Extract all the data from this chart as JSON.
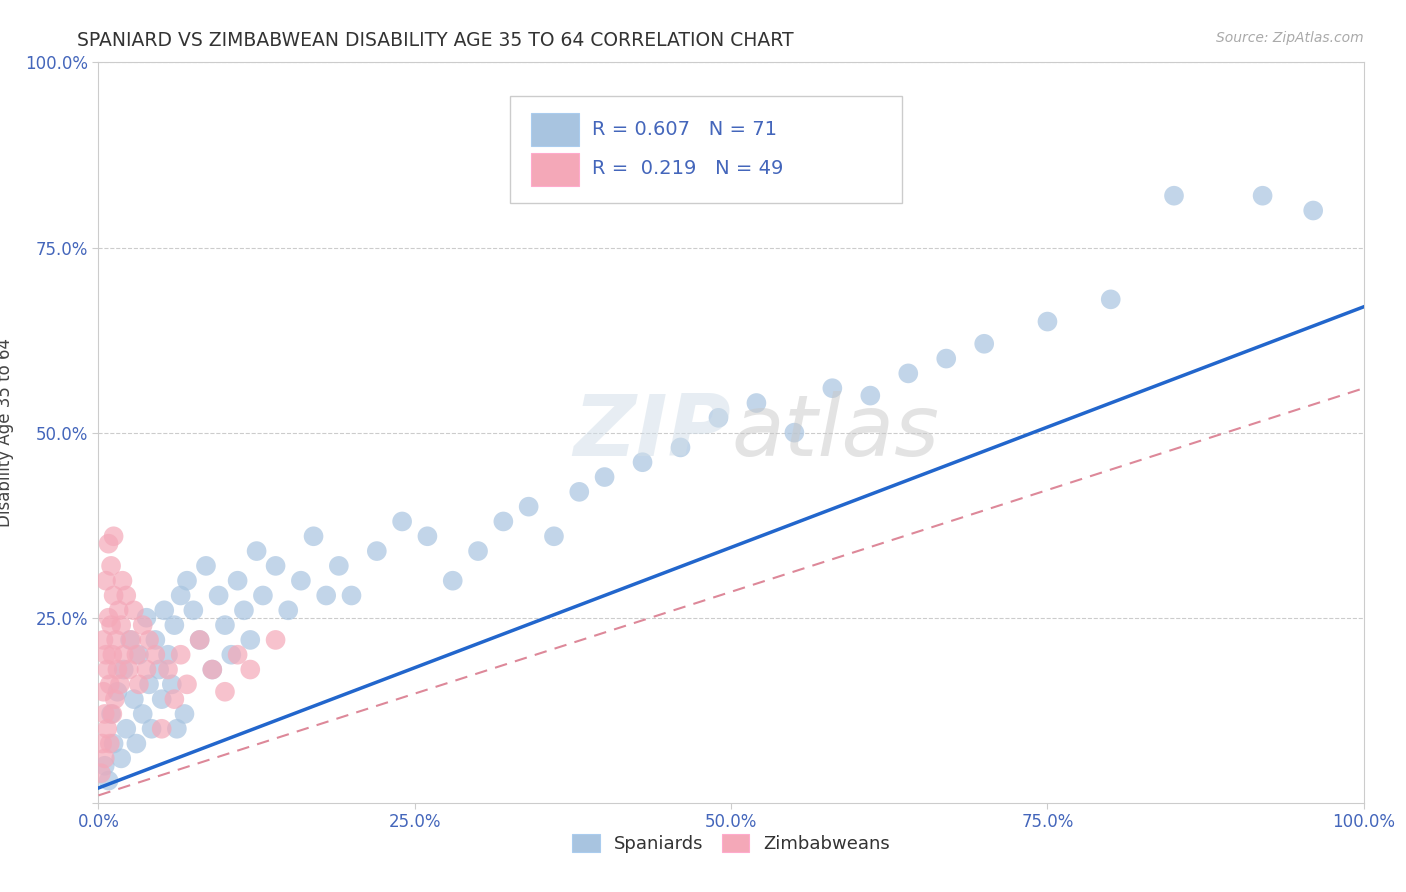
{
  "title": "SPANIARD VS ZIMBABWEAN DISABILITY AGE 35 TO 64 CORRELATION CHART",
  "source": "Source: ZipAtlas.com",
  "ylabel": "Disability Age 35 to 64",
  "xlim": [
    0,
    1
  ],
  "ylim": [
    0,
    1
  ],
  "xticks": [
    0.0,
    0.25,
    0.5,
    0.75,
    1.0
  ],
  "yticks": [
    0.0,
    0.25,
    0.5,
    0.75,
    1.0
  ],
  "xticklabels": [
    "0.0%",
    "25.0%",
    "50.0%",
    "75.0%",
    "100.0%"
  ],
  "yticklabels": [
    "",
    "25.0%",
    "50.0%",
    "75.0%",
    "100.0%"
  ],
  "spaniards_color": "#a8c4e0",
  "zimbabweans_color": "#f4a8b8",
  "spaniards_R": 0.607,
  "spaniards_N": 71,
  "zimbabweans_R": 0.219,
  "zimbabweans_N": 49,
  "line_blue": "#2266cc",
  "line_pink": "#dd8899",
  "legend_text_color": "#4466bb",
  "background_color": "#ffffff",
  "grid_color": "#cccccc",
  "spaniards_x": [
    0.005,
    0.008,
    0.01,
    0.012,
    0.015,
    0.018,
    0.02,
    0.022,
    0.025,
    0.028,
    0.03,
    0.032,
    0.035,
    0.038,
    0.04,
    0.042,
    0.045,
    0.048,
    0.05,
    0.052,
    0.055,
    0.058,
    0.06,
    0.062,
    0.065,
    0.068,
    0.07,
    0.075,
    0.08,
    0.085,
    0.09,
    0.095,
    0.1,
    0.105,
    0.11,
    0.115,
    0.12,
    0.125,
    0.13,
    0.14,
    0.15,
    0.16,
    0.17,
    0.18,
    0.19,
    0.2,
    0.22,
    0.24,
    0.26,
    0.28,
    0.3,
    0.32,
    0.34,
    0.36,
    0.38,
    0.4,
    0.43,
    0.46,
    0.49,
    0.52,
    0.55,
    0.58,
    0.61,
    0.64,
    0.67,
    0.7,
    0.75,
    0.8,
    0.85,
    0.92,
    0.96
  ],
  "spaniards_y": [
    0.05,
    0.03,
    0.12,
    0.08,
    0.15,
    0.06,
    0.18,
    0.1,
    0.22,
    0.14,
    0.08,
    0.2,
    0.12,
    0.25,
    0.16,
    0.1,
    0.22,
    0.18,
    0.14,
    0.26,
    0.2,
    0.16,
    0.24,
    0.1,
    0.28,
    0.12,
    0.3,
    0.26,
    0.22,
    0.32,
    0.18,
    0.28,
    0.24,
    0.2,
    0.3,
    0.26,
    0.22,
    0.34,
    0.28,
    0.32,
    0.26,
    0.3,
    0.36,
    0.28,
    0.32,
    0.28,
    0.34,
    0.38,
    0.36,
    0.3,
    0.34,
    0.38,
    0.4,
    0.36,
    0.42,
    0.44,
    0.46,
    0.48,
    0.52,
    0.54,
    0.5,
    0.56,
    0.55,
    0.58,
    0.6,
    0.62,
    0.65,
    0.68,
    0.82,
    0.82,
    0.8
  ],
  "zimbabweans_x": [
    0.002,
    0.003,
    0.004,
    0.004,
    0.005,
    0.005,
    0.006,
    0.006,
    0.007,
    0.007,
    0.008,
    0.008,
    0.009,
    0.009,
    0.01,
    0.01,
    0.011,
    0.011,
    0.012,
    0.012,
    0.013,
    0.014,
    0.015,
    0.016,
    0.017,
    0.018,
    0.019,
    0.02,
    0.022,
    0.024,
    0.026,
    0.028,
    0.03,
    0.032,
    0.035,
    0.038,
    0.04,
    0.045,
    0.05,
    0.055,
    0.06,
    0.065,
    0.07,
    0.08,
    0.09,
    0.1,
    0.11,
    0.12,
    0.14
  ],
  "zimbabweans_y": [
    0.04,
    0.08,
    0.15,
    0.22,
    0.06,
    0.12,
    0.2,
    0.3,
    0.1,
    0.18,
    0.25,
    0.35,
    0.08,
    0.16,
    0.24,
    0.32,
    0.12,
    0.2,
    0.28,
    0.36,
    0.14,
    0.22,
    0.18,
    0.26,
    0.16,
    0.24,
    0.3,
    0.2,
    0.28,
    0.18,
    0.22,
    0.26,
    0.2,
    0.16,
    0.24,
    0.18,
    0.22,
    0.2,
    0.1,
    0.18,
    0.14,
    0.2,
    0.16,
    0.22,
    0.18,
    0.15,
    0.2,
    0.18,
    0.22
  ]
}
